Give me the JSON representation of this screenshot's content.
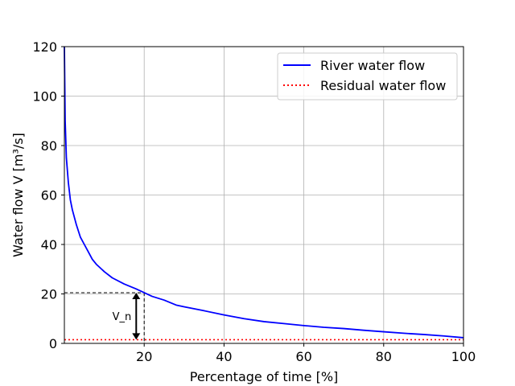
{
  "chart_data": {
    "type": "line",
    "title": "",
    "xlabel": "Percentage of time [%]",
    "ylabel": "Water flow V [m³/s]",
    "xlim": [
      0,
      100
    ],
    "ylim": [
      0,
      120
    ],
    "grid": true,
    "x_ticks": [
      20,
      40,
      60,
      80,
      100
    ],
    "x_tick_labels": [
      "20",
      "40",
      "60",
      "80",
      "100"
    ],
    "y_ticks": [
      0,
      20,
      40,
      60,
      80,
      100,
      120
    ],
    "y_tick_labels": [
      "0",
      "20",
      "40",
      "60",
      "80",
      "100",
      "120"
    ],
    "legend_position": "top-right",
    "series": [
      {
        "name": "River water flow",
        "color": "#0000ff",
        "style": "solid",
        "x": [
          0,
          0.2,
          0.5,
          1,
          1.5,
          2,
          3,
          4,
          5,
          6,
          7,
          8,
          10,
          12,
          15,
          18,
          20,
          22,
          25,
          28,
          30,
          35,
          40,
          45,
          50,
          55,
          60,
          65,
          70,
          75,
          80,
          85,
          90,
          95,
          100
        ],
        "values": [
          120,
          90,
          75,
          65,
          58,
          54,
          48,
          43,
          40,
          37,
          34,
          32,
          29,
          26.5,
          24,
          22,
          20.5,
          19,
          17.5,
          15.5,
          14.8,
          13.2,
          11.5,
          10,
          8.8,
          8,
          7.2,
          6.5,
          6,
          5.3,
          4.7,
          4.1,
          3.6,
          3,
          2.3
        ]
      },
      {
        "name": "Residual water flow",
        "color": "#ff0000",
        "style": "dotted",
        "x": [
          0,
          100
        ],
        "values": [
          1.5,
          1.5
        ]
      }
    ],
    "annotations": [
      {
        "label": "V_n",
        "x": 18,
        "y_from": 1.5,
        "y_to": 20.5,
        "marker_x": 20,
        "marker_y": 20.5
      }
    ]
  }
}
